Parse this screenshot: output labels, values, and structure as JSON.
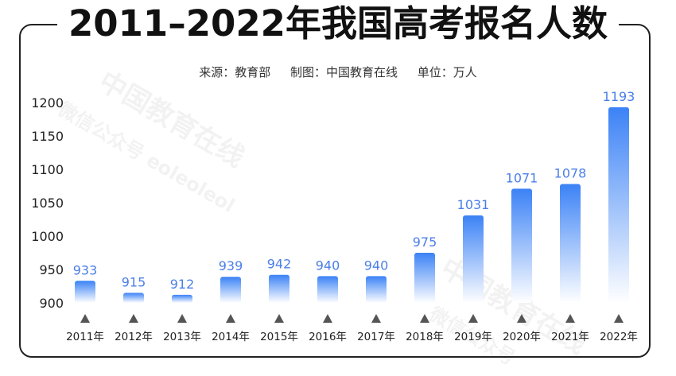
{
  "page": {
    "title": "2011–2022年我国高考报名人数",
    "meta": {
      "source": "来源：教育部",
      "chart_by": "制图：中国教育在线",
      "unit": "单位：万人"
    },
    "watermarks": [
      "中国教育在线",
      "微信公众号 eoleoleol",
      "中国教育在线",
      "微信公众号"
    ]
  },
  "colors": {
    "bar_top": "#3b82f6",
    "bar_bottom": "#ffffff",
    "label": "#4b7fe8",
    "axis_text": "#222222",
    "marker": "#555555",
    "frame": "#222222"
  },
  "chart_data": {
    "type": "bar",
    "title": "2011–2022年我国高考报名人数",
    "categories": [
      "2011年",
      "2012年",
      "2013年",
      "2014年",
      "2015年",
      "2016年",
      "2017年",
      "2018年",
      "2019年",
      "2020年",
      "2021年",
      "2022年"
    ],
    "values": [
      933,
      915,
      912,
      939,
      942,
      940,
      940,
      975,
      1031,
      1071,
      1078,
      1193
    ],
    "ylim": [
      900,
      1200
    ],
    "yticks": [
      900,
      950,
      1000,
      1050,
      1100,
      1150,
      1200
    ],
    "grid": false,
    "legend": "none",
    "data_labels": true
  }
}
